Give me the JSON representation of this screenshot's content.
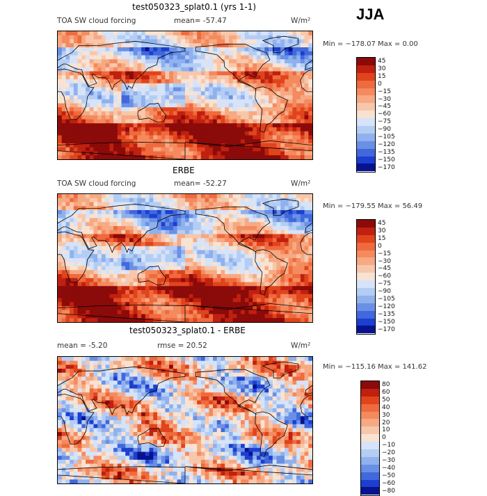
{
  "header": {
    "season": "JJA"
  },
  "panels": [
    {
      "title": "test050323_splat0.1 (yrs 1-1)",
      "left_label": "TOA SW cloud forcing",
      "stat_label": "mean=  -57.47",
      "units": "W/m²",
      "minmax": "Min = −178.07 Max =    0.00",
      "levels": [
        "45",
        "30",
        "15",
        "0",
        "−15",
        "−30",
        "−45",
        "−60",
        "−75",
        "−90",
        "−105",
        "−120",
        "−135",
        "−150",
        "−170"
      ],
      "colors": [
        "#8b0a0a",
        "#c0200f",
        "#e0441c",
        "#ef6a3e",
        "#f48a5e",
        "#f6a982",
        "#f8c7ab",
        "#f8e3d3",
        "#d6e3f8",
        "#b4cdf4",
        "#8fb1ee",
        "#6a90e6",
        "#4168dc",
        "#1c3fcf",
        "#07128f"
      ],
      "style": "model"
    },
    {
      "title": "ERBE",
      "left_label": "TOA SW cloud forcing",
      "stat_label": "mean=  -52.27",
      "units": "W/m²",
      "minmax": "Min = −179.55 Max =   56.49",
      "levels": [
        "45",
        "30",
        "15",
        "0",
        "−15",
        "−30",
        "−45",
        "−60",
        "−75",
        "−90",
        "−105",
        "−120",
        "−135",
        "−150",
        "−170"
      ],
      "colors": [
        "#8b0a0a",
        "#c0200f",
        "#e0441c",
        "#ef6a3e",
        "#f48a5e",
        "#f6a982",
        "#f8c7ab",
        "#f8e3d3",
        "#d6e3f8",
        "#b4cdf4",
        "#8fb1ee",
        "#6a90e6",
        "#4168dc",
        "#1c3fcf",
        "#07128f"
      ],
      "style": "obs"
    },
    {
      "title": "test050323_splat0.1 - ERBE",
      "left_label": "mean =   -5.20",
      "stat_label": "rmse =   20.52",
      "units": "W/m²",
      "minmax": "Min = −115.16 Max =  141.62",
      "levels": [
        "80",
        "60",
        "50",
        "40",
        "30",
        "20",
        "10",
        "0",
        "−10",
        "−20",
        "−30",
        "−40",
        "−50",
        "−60",
        "−80"
      ],
      "colors": [
        "#8b0a0a",
        "#c0200f",
        "#e0441c",
        "#ef6a3e",
        "#f48a5e",
        "#f6a982",
        "#f8c7ab",
        "#f8e3d3",
        "#d6e3f8",
        "#b4cdf4",
        "#8fb1ee",
        "#6a90e6",
        "#4168dc",
        "#1c3fcf",
        "#07128f"
      ],
      "style": "diff"
    }
  ]
}
